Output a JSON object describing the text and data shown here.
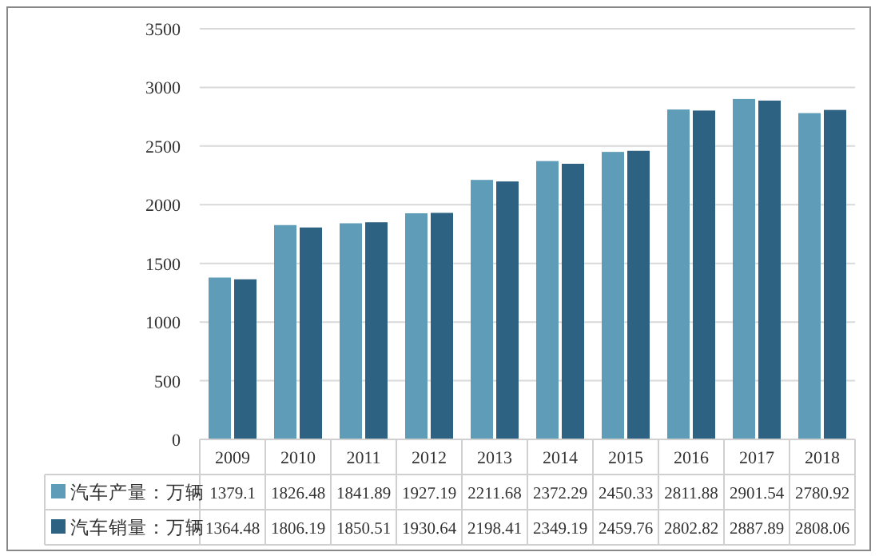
{
  "chart_data": {
    "type": "bar",
    "categories": [
      "2009",
      "2010",
      "2011",
      "2012",
      "2013",
      "2014",
      "2015",
      "2016",
      "2017",
      "2018"
    ],
    "series": [
      {
        "name": "汽车产量：万辆",
        "color": "#5f9cb8",
        "values": [
          1379.1,
          1826.48,
          1841.89,
          1927.19,
          2211.68,
          2372.29,
          2450.33,
          2811.88,
          2901.54,
          2780.92
        ],
        "value_labels": [
          "1379.1",
          "1826.48",
          "1841.89",
          "1927.19",
          "2211.68",
          "2372.29",
          "2450.33",
          "2811.88",
          "2901.54",
          "2780.92"
        ]
      },
      {
        "name": "汽车销量：万辆",
        "color": "#2d6282",
        "values": [
          1364.48,
          1806.19,
          1850.51,
          1930.64,
          2198.41,
          2349.19,
          2459.76,
          2802.82,
          2887.89,
          2808.06
        ],
        "value_labels": [
          "1364.48",
          "1806.19",
          "1850.51",
          "1930.64",
          "2198.41",
          "2349.19",
          "2459.76",
          "2802.82",
          "2887.89",
          "2808.06"
        ]
      }
    ],
    "ylim": [
      0,
      3500
    ],
    "yticks": [
      0,
      500,
      1000,
      1500,
      2000,
      2500,
      3000,
      3500
    ],
    "grid": "y",
    "legend": "bottom",
    "data_labels": true
  }
}
